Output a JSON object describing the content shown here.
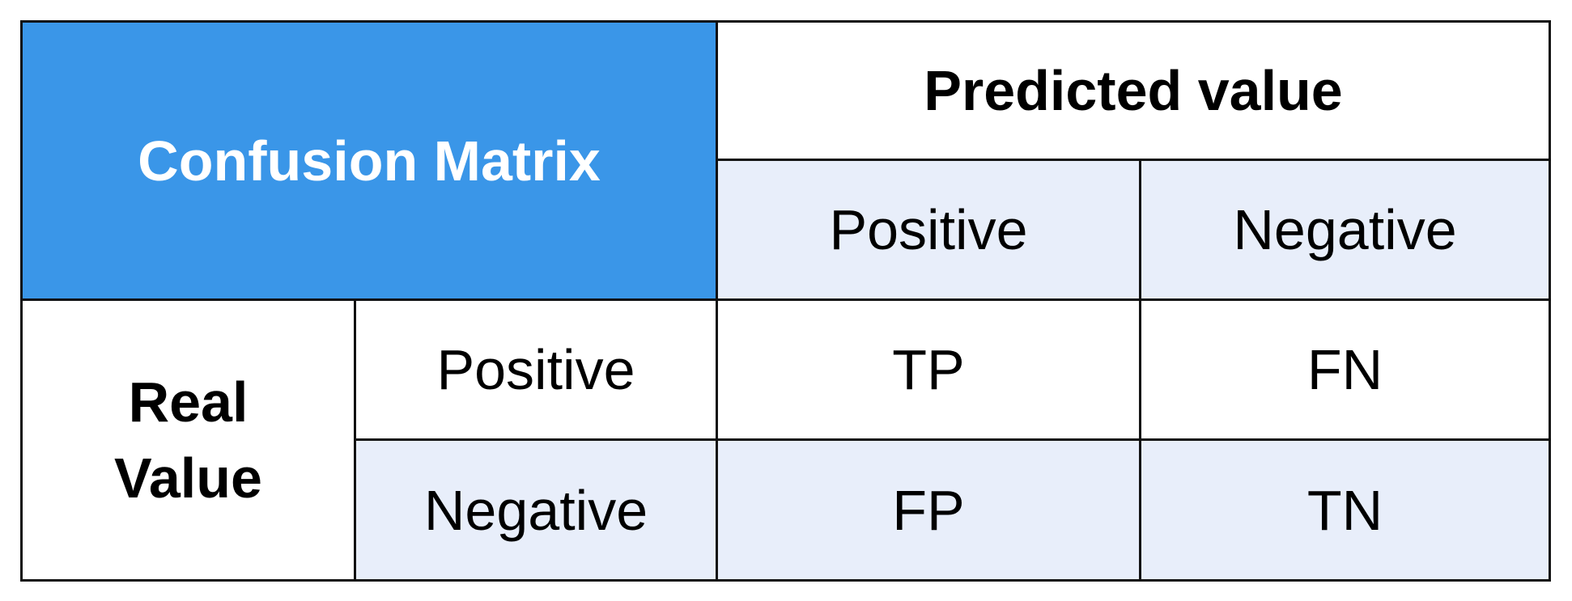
{
  "table": {
    "title": "Confusion Matrix",
    "column_header": "Predicted value",
    "columns": [
      "Positive",
      "Negative"
    ],
    "row_header": "Real Value",
    "rows": [
      {
        "label": "Positive",
        "cells": [
          "TP",
          "FN"
        ]
      },
      {
        "label": "Negative",
        "cells": [
          "FP",
          "TN"
        ]
      }
    ]
  }
}
